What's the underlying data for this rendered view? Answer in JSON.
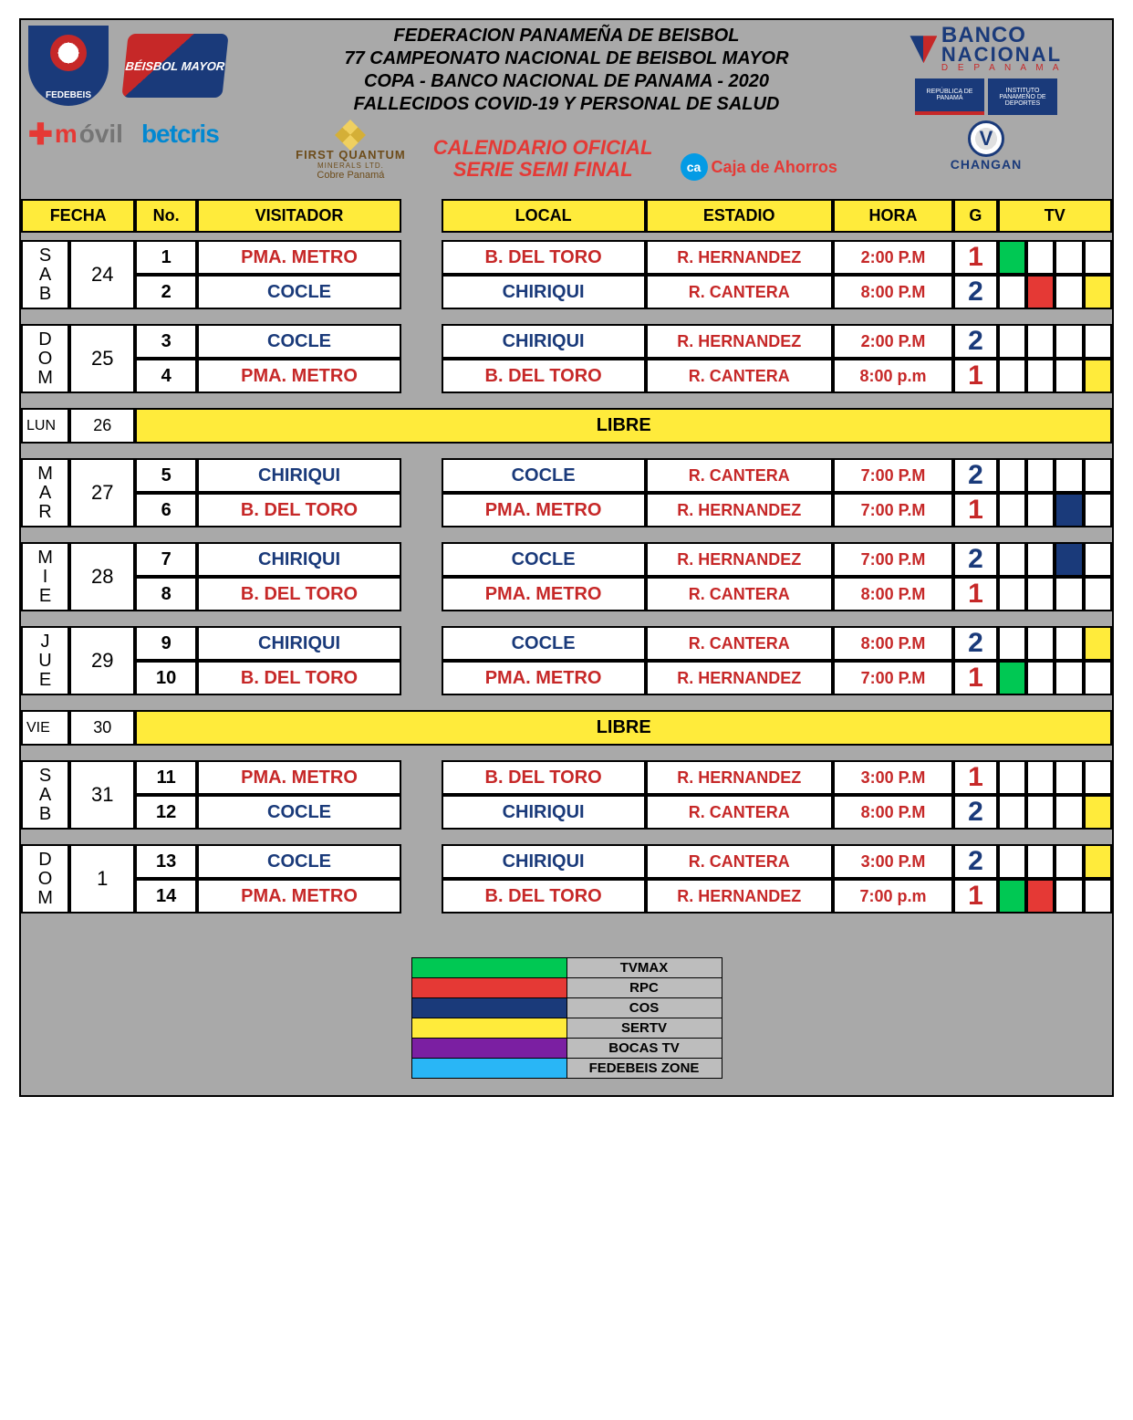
{
  "header": {
    "federation": "FEDERACION PANAMEÑA DE BEISBOL",
    "championship": "77 CAMPEONATO NACIONAL DE BEISBOL MAYOR",
    "cup": "COPA  - BANCO NACIONAL DE PANAMA - 2020",
    "dedication": "FALLECIDOS COVID-19 Y PERSONAL DE SALUD",
    "calendar_title1": "CALENDARIO OFICIAL",
    "calendar_title2": "SERIE SEMI FINAL",
    "sponsors": {
      "fedebeis": "FEDEBEIS",
      "beisbol_mayor": "BÉISBOL MAYOR",
      "movil": "móvil",
      "betcris": "betcris",
      "fq_name": "FIRST QUANTUM",
      "fq_sub": "Cobre Panamá",
      "bn_banco": "BANCO",
      "bn_nacional": "NACIONAL",
      "bn_panama": "D E   P A N A M A",
      "patch1": "REPÚBLICA DE PANAMÁ",
      "patch2": "INSTITUTO PANAMEÑO DE DEPORTES",
      "ca": "Caja de Ahorros",
      "ca_badge": "ca",
      "changan": "CHANGAN",
      "changan_v": "V"
    }
  },
  "columns": {
    "fecha": "FECHA",
    "no": "No.",
    "visitor": "VISITADOR",
    "local": "LOCAL",
    "stadium": "ESTADIO",
    "hora": "HORA",
    "g": "G",
    "tv": "TV"
  },
  "teams": {
    "pma": "PMA. METRO",
    "cocle": "COCLE",
    "chiriqui": "CHIRIQUI",
    "bdt": "B. DEL TORO"
  },
  "team_colors": {
    "pma": "red-team",
    "cocle": "blue-team",
    "chiriqui": "blue-team",
    "bdt": "red-team"
  },
  "stadiums": {
    "rh": "R. HERNANDEZ",
    "rc": "R. CANTERA"
  },
  "tv_colors": {
    "white": "tv-white",
    "green": "tv-green",
    "red": "tv-red",
    "navy": "tv-blue",
    "yellow": "tv-yellow",
    "lightblue": "tv-lightblue",
    "purple": "tv-purple"
  },
  "days": [
    {
      "day_label": "S\nA\nB",
      "date": "24",
      "games": [
        {
          "no": "1",
          "visitor": "pma",
          "local": "bdt",
          "stadium": "rh",
          "hora": "2:00 P.M",
          "g": "1",
          "tv": [
            "green",
            "white",
            "white",
            "white"
          ]
        },
        {
          "no": "2",
          "visitor": "cocle",
          "local": "chiriqui",
          "stadium": "rc",
          "hora": "8:00 P.M",
          "g": "2",
          "tv": [
            "white",
            "red",
            "white",
            "yellow"
          ]
        }
      ]
    },
    {
      "day_label": "D\nO\nM",
      "date": "25",
      "games": [
        {
          "no": "3",
          "visitor": "cocle",
          "local": "chiriqui",
          "stadium": "rh",
          "hora": "2:00 P.M",
          "g": "2",
          "tv": [
            "white",
            "white",
            "white",
            "white"
          ]
        },
        {
          "no": "4",
          "visitor": "pma",
          "local": "bdt",
          "stadium": "rc",
          "hora": "8:00 p.m",
          "g": "1",
          "tv": [
            "white",
            "white",
            "white",
            "yellow"
          ]
        }
      ]
    },
    {
      "libre": true,
      "short_day": "LUN",
      "date": "26",
      "label": "LIBRE"
    },
    {
      "day_label": "M\nA\nR",
      "date": "27",
      "games": [
        {
          "no": "5",
          "visitor": "chiriqui",
          "local": "cocle",
          "stadium": "rc",
          "hora": "7:00 P.M",
          "g": "2",
          "tv": [
            "white",
            "white",
            "white",
            "white"
          ]
        },
        {
          "no": "6",
          "visitor": "bdt",
          "local": "pma",
          "stadium": "rh",
          "hora": "7:00 P.M",
          "g": "1",
          "tv": [
            "white",
            "white",
            "navy",
            "white"
          ]
        }
      ]
    },
    {
      "day_label": "M\nI\nE",
      "date": "28",
      "games": [
        {
          "no": "7",
          "visitor": "chiriqui",
          "local": "cocle",
          "stadium": "rh",
          "hora": "7:00 P.M",
          "g": "2",
          "tv": [
            "white",
            "white",
            "navy",
            "white"
          ]
        },
        {
          "no": "8",
          "visitor": "bdt",
          "local": "pma",
          "stadium": "rc",
          "hora": "8:00 P.M",
          "g": "1",
          "tv": [
            "white",
            "white",
            "white",
            "white"
          ]
        }
      ]
    },
    {
      "day_label": "J\nU\nE",
      "date": "29",
      "games": [
        {
          "no": "9",
          "visitor": "chiriqui",
          "local": "cocle",
          "stadium": "rc",
          "hora": "8:00 P.M",
          "g": "2",
          "tv": [
            "white",
            "white",
            "white",
            "yellow"
          ]
        },
        {
          "no": "10",
          "visitor": "bdt",
          "local": "pma",
          "stadium": "rh",
          "hora": "7:00 P.M",
          "g": "1",
          "tv": [
            "green",
            "white",
            "white",
            "white"
          ]
        }
      ]
    },
    {
      "libre": true,
      "short_day": "VIE",
      "date": "30",
      "label": "LIBRE"
    },
    {
      "day_label": "S\nA\nB",
      "date": "31",
      "games": [
        {
          "no": "11",
          "visitor": "pma",
          "local": "bdt",
          "stadium": "rh",
          "hora": "3:00 P.M",
          "g": "1",
          "tv": [
            "white",
            "white",
            "white",
            "white"
          ]
        },
        {
          "no": "12",
          "visitor": "cocle",
          "local": "chiriqui",
          "stadium": "rc",
          "hora": "8:00 P.M",
          "g": "2",
          "tv": [
            "white",
            "white",
            "white",
            "yellow"
          ]
        }
      ]
    },
    {
      "day_label": "D\nO\nM",
      "date": "1",
      "games": [
        {
          "no": "13",
          "visitor": "cocle",
          "local": "chiriqui",
          "stadium": "rc",
          "hora": "3:00 P.M",
          "g": "2",
          "tv": [
            "white",
            "white",
            "white",
            "yellow"
          ]
        },
        {
          "no": "14",
          "visitor": "pma",
          "local": "bdt",
          "stadium": "rh",
          "hora": "7:00 p.m",
          "g": "1",
          "tv": [
            "green",
            "red",
            "white",
            "white"
          ]
        }
      ]
    }
  ],
  "legend": [
    {
      "color": "tv-green",
      "label": "TVMAX"
    },
    {
      "color": "tv-red",
      "label": "RPC"
    },
    {
      "color": "tv-blue",
      "label": "COS"
    },
    {
      "color": "tv-yellow",
      "label": "SERTV"
    },
    {
      "color": "tv-purple",
      "label": "BOCAS TV"
    },
    {
      "color": "tv-lightblue",
      "label": "FEDEBEIS ZONE"
    }
  ],
  "colors": {
    "bg_gray": "#a9a9a9",
    "header_yellow": "#ffeb3b",
    "red": "#c62828",
    "blue": "#1a3a7a"
  }
}
